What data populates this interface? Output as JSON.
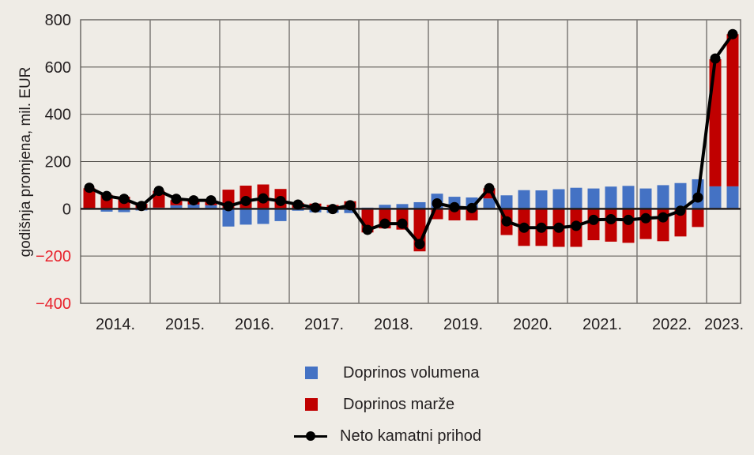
{
  "chart_data": {
    "type": "bar",
    "subtype": "stacked bar with line",
    "title": "",
    "xlabel": "",
    "ylabel": "godišnja promjena, mil. EUR",
    "ylim": [
      -400,
      800
    ],
    "yticks": [
      800,
      600,
      400,
      200,
      0,
      -200,
      -400
    ],
    "ytick_labels": [
      "800",
      "600",
      "400",
      "200",
      "0",
      "−200",
      "−400"
    ],
    "grid": true,
    "legend_position": "bottom-center",
    "year_labels": [
      "2014.",
      "2015.",
      "2016.",
      "2017.",
      "2018.",
      "2019.",
      "2020.",
      "2021.",
      "2022.",
      "2023."
    ],
    "quarters_per_year": 4,
    "categories": [
      "2014 Q1",
      "2014 Q2",
      "2014 Q3",
      "2014 Q4",
      "2015 Q1",
      "2015 Q2",
      "2015 Q3",
      "2015 Q4",
      "2016 Q1",
      "2016 Q2",
      "2016 Q3",
      "2016 Q4",
      "2017 Q1",
      "2017 Q2",
      "2017 Q3",
      "2017 Q4",
      "2018 Q1",
      "2018 Q2",
      "2018 Q3",
      "2018 Q4",
      "2019 Q1",
      "2019 Q2",
      "2019 Q3",
      "2019 Q4",
      "2020 Q1",
      "2020 Q2",
      "2020 Q3",
      "2020 Q4",
      "2021 Q1",
      "2021 Q2",
      "2021 Q3",
      "2021 Q4",
      "2022 Q1",
      "2022 Q2",
      "2022 Q3",
      "2022 Q4",
      "2023 Q1",
      "2023 Q2"
    ],
    "series": [
      {
        "name": "Doprinos volumena",
        "kind": "bar",
        "color": "#4472c4",
        "values": [
          0,
          -12,
          -14,
          -7,
          5,
          15,
          18,
          15,
          -75,
          -67,
          -64,
          -52,
          -8,
          -15,
          -17,
          -18,
          5,
          17,
          20,
          28,
          64,
          51,
          48,
          44,
          57,
          79,
          78,
          83,
          89,
          86,
          94,
          97,
          86,
          100,
          109,
          125,
          95,
          95
        ]
      },
      {
        "name": "Doprinos marže",
        "kind": "bar",
        "color": "#c00000",
        "values": [
          87,
          59,
          51,
          21,
          71,
          22,
          15,
          18,
          81,
          98,
          103,
          84,
          25,
          22,
          16,
          32,
          -100,
          -83,
          -88,
          -180,
          -44,
          -49,
          -49,
          43,
          -111,
          -157,
          -157,
          -161,
          -161,
          -133,
          -139,
          -144,
          -128,
          -137,
          -117,
          -77,
          538,
          644
        ]
      },
      {
        "name": "Neto kamatni prihod",
        "kind": "line",
        "color": "#000000",
        "values": [
          89,
          54,
          42,
          12,
          76,
          42,
          36,
          36,
          11,
          33,
          44,
          33,
          18,
          5,
          -1,
          15,
          -89,
          -63,
          -63,
          -149,
          23,
          7,
          3,
          87,
          -53,
          -80,
          -80,
          -80,
          -72,
          -47,
          -44,
          -47,
          -40,
          -36,
          -8,
          48,
          636,
          739
        ]
      }
    ]
  },
  "legend": {
    "items": [
      {
        "label": "Doprinos volumena",
        "color": "#4472c4",
        "icon": "square-swatch"
      },
      {
        "label": "Doprinos marže",
        "color": "#c00000",
        "icon": "square-swatch"
      },
      {
        "label": "Neto kamatni prihod",
        "color": "#000000",
        "icon": "line-with-dot"
      }
    ]
  }
}
